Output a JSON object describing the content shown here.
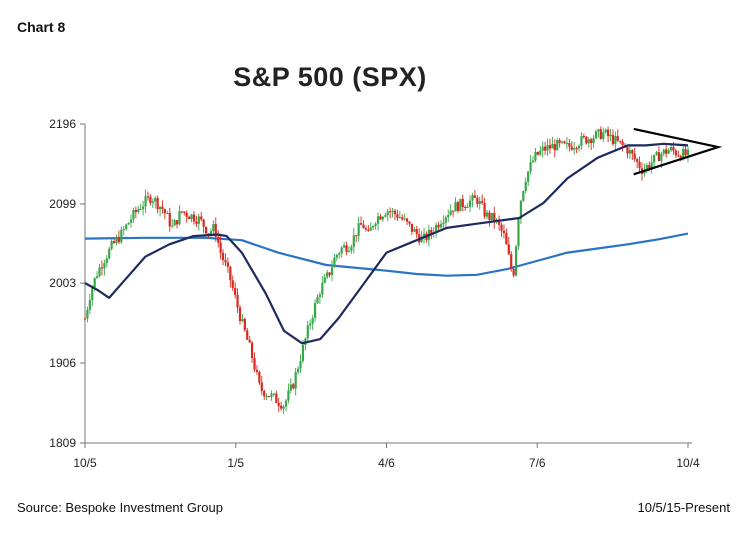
{
  "header": {
    "chart_number": "Chart 8"
  },
  "footer": {
    "source": "Source: Bespoke Investment Group",
    "date_range": "10/5/15-Present"
  },
  "chart_data": {
    "type": "line",
    "title": "S&P 500 (SPX)",
    "xlabel": "",
    "ylabel": "",
    "x_ticks": [
      "10/5",
      "1/5",
      "4/6",
      "7/6",
      "10/4"
    ],
    "y_ticks": [
      1809,
      1906,
      2003,
      2099,
      2196
    ],
    "ylim": [
      1809,
      2196
    ],
    "grid": false,
    "legend": "none",
    "colors": {
      "up_candle": "#3aa64a",
      "down_candle": "#d9281f",
      "ma50": "#1e2a5c",
      "ma200": "#2a73c7",
      "triangle": "#000000"
    },
    "series": [
      {
        "type": "candlestick",
        "t": [
          0,
          0.01,
          0.02,
          0.03,
          0.045,
          0.06,
          0.075,
          0.09,
          0.11,
          0.13,
          0.145,
          0.16,
          0.175,
          0.19,
          0.205,
          0.215,
          0.225,
          0.24,
          0.26,
          0.275,
          0.29,
          0.31,
          0.33,
          0.345,
          0.36,
          0.375,
          0.39,
          0.405,
          0.415,
          0.425,
          0.44,
          0.45,
          0.46,
          0.47,
          0.48,
          0.5,
          0.52,
          0.54,
          0.56,
          0.575,
          0.59,
          0.61,
          0.63,
          0.65,
          0.665,
          0.68,
          0.695,
          0.71,
          0.72,
          0.73,
          0.745,
          0.76,
          0.78,
          0.8,
          0.82,
          0.84,
          0.86,
          0.88,
          0.9,
          0.91,
          0.925,
          0.94,
          0.955,
          0.97,
          0.985,
          1.0
        ],
        "close": [
          1960,
          1995,
          2015,
          2030,
          2048,
          2062,
          2080,
          2095,
          2108,
          2092,
          2070,
          2090,
          2085,
          2080,
          2065,
          2070,
          2040,
          2010,
          1955,
          1920,
          1875,
          1865,
          1855,
          1880,
          1920,
          1960,
          1995,
          2015,
          2035,
          2045,
          2050,
          2065,
          2075,
          2060,
          2080,
          2092,
          2085,
          2070,
          2055,
          2065,
          2080,
          2095,
          2100,
          2105,
          2085,
          2080,
          2060,
          2010,
          2095,
          2130,
          2155,
          2165,
          2170,
          2168,
          2175,
          2180,
          2185,
          2175,
          2165,
          2155,
          2140,
          2150,
          2160,
          2165,
          2160,
          2158
        ]
      },
      {
        "name": "",
        "type": "line",
        "t": [
          0,
          0.02,
          0.04,
          0.07,
          0.1,
          0.14,
          0.18,
          0.22,
          0.235,
          0.26,
          0.3,
          0.33,
          0.36,
          0.39,
          0.42,
          0.46,
          0.5,
          0.55,
          0.6,
          0.65,
          0.7,
          0.72,
          0.76,
          0.8,
          0.85,
          0.9,
          0.93,
          0.96,
          1.0
        ],
        "values": [
          2003,
          1995,
          1985,
          2010,
          2035,
          2050,
          2060,
          2062,
          2060,
          2040,
          1990,
          1945,
          1930,
          1935,
          1960,
          2000,
          2040,
          2055,
          2070,
          2075,
          2080,
          2082,
          2100,
          2130,
          2155,
          2170,
          2170,
          2172,
          2170
        ]
      },
      {
        "name": "",
        "type": "line",
        "t": [
          0,
          0.1,
          0.2,
          0.26,
          0.32,
          0.4,
          0.5,
          0.55,
          0.6,
          0.65,
          0.7,
          0.74,
          0.8,
          0.85,
          0.9,
          0.95,
          1.0
        ],
        "values": [
          2057,
          2058,
          2058,
          2055,
          2040,
          2025,
          2018,
          2014,
          2012,
          2013,
          2020,
          2028,
          2040,
          2045,
          2050,
          2056,
          2063
        ]
      }
    ],
    "annotations": [
      {
        "type": "triangle-pattern",
        "t_start": 0.91,
        "t_end": 1.05,
        "upper": [
          2190,
          2168
        ],
        "lower": [
          2135,
          2168
        ]
      }
    ]
  }
}
